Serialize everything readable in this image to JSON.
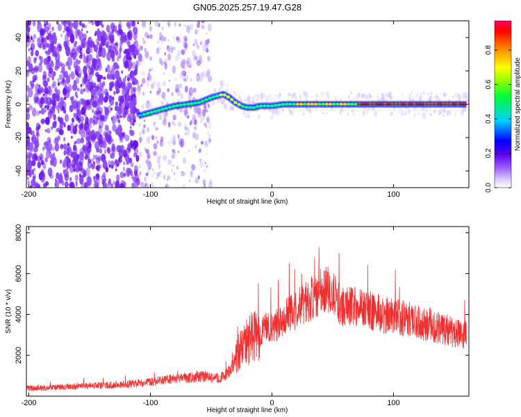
{
  "figure": {
    "title": "GN05.2025.257.19.47.G28"
  },
  "chart_data": [
    {
      "type": "heatmap",
      "xlabel": "Height of straight line (km)",
      "ylabel": "Frequency (Hz)",
      "xlim": [
        -202,
        162
      ],
      "ylim": [
        -50,
        50
      ],
      "x_ticks": [
        -200,
        -100,
        0,
        100
      ],
      "y_ticks": [
        -40,
        -20,
        0,
        20,
        40
      ],
      "grid": false,
      "trace": {
        "x": [
          -110,
          -100,
          -90,
          -80,
          -70,
          -60,
          -50,
          -45,
          -40,
          -35,
          -30,
          -25,
          -20,
          -15,
          -10,
          0,
          10,
          20,
          30,
          40,
          60,
          80,
          100,
          120,
          140,
          160
        ],
        "frequency": [
          -7,
          -5,
          -3,
          -1,
          0,
          1,
          4,
          5,
          6,
          4,
          1,
          -1,
          -2,
          -2,
          -1,
          -1,
          0,
          0,
          0,
          0,
          0,
          0,
          0,
          0,
          0,
          0
        ]
      },
      "colorbar": {
        "label": "Normalized spectral amplitude",
        "ticks": [
          0.0,
          0.2,
          0.4,
          0.6,
          0.8
        ],
        "range": [
          0,
          0.97
        ]
      }
    },
    {
      "type": "line",
      "xlabel": "Height of straight line (km)",
      "ylabel": "SNR (10 * v/v)",
      "xlim": [
        -202,
        162
      ],
      "ylim": [
        0,
        8300
      ],
      "x_ticks": [
        -200,
        -100,
        0,
        100
      ],
      "y_ticks": [
        2000,
        4000,
        6000,
        8000
      ],
      "grid": false,
      "series": [
        {
          "color": "#f03030",
          "x": [
            -202,
            -190,
            -180,
            -170,
            -160,
            -150,
            -140,
            -130,
            -120,
            -110,
            -100,
            -90,
            -80,
            -70,
            -60,
            -55,
            -50,
            -45,
            -40,
            -35,
            -30,
            -25,
            -20,
            -15,
            -10,
            -5,
            0,
            5,
            10,
            15,
            20,
            25,
            30,
            35,
            40,
            45,
            50,
            55,
            60,
            65,
            70,
            80,
            90,
            100,
            110,
            120,
            130,
            140,
            150,
            160
          ],
          "y": [
            400,
            380,
            420,
            450,
            470,
            500,
            520,
            550,
            580,
            620,
            700,
            780,
            850,
            900,
            950,
            950,
            900,
            880,
            950,
            1200,
            1800,
            2400,
            2700,
            2900,
            3100,
            3300,
            3300,
            3600,
            3900,
            4100,
            4200,
            4500,
            4700,
            4900,
            5100,
            5300,
            5000,
            4500,
            4300,
            4500,
            4400,
            4200,
            4000,
            3900,
            3800,
            3600,
            3500,
            3300,
            3100,
            3000
          ]
        }
      ]
    }
  ]
}
